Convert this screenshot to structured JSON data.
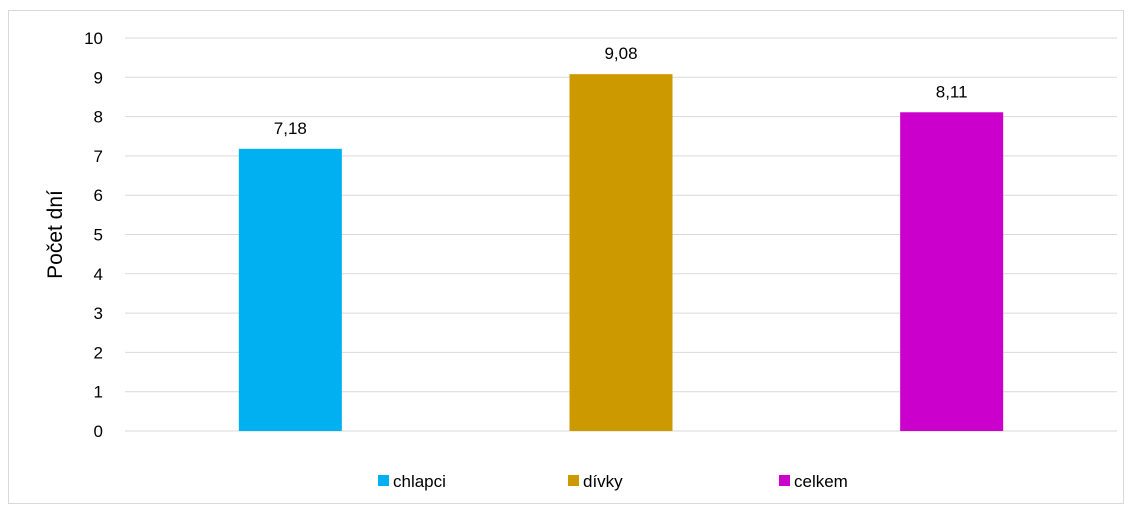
{
  "chart_data": {
    "type": "bar",
    "categories": [
      "chlapci",
      "dívky",
      "celkem"
    ],
    "values": [
      7.18,
      9.08,
      8.11
    ],
    "data_labels": [
      "7,18",
      "9,08",
      "8,11"
    ],
    "colors": [
      "#00b0f0",
      "#cc9900",
      "#cc00cc"
    ],
    "title": "",
    "xlabel": "",
    "ylabel": "Počet dní",
    "ylim": [
      0,
      10
    ],
    "yticks": [
      0,
      1,
      2,
      3,
      4,
      5,
      6,
      7,
      8,
      9,
      10
    ],
    "grid": true,
    "legend": {
      "position": "bottom",
      "entries": [
        "chlapci",
        "dívky",
        "celkem"
      ]
    }
  }
}
